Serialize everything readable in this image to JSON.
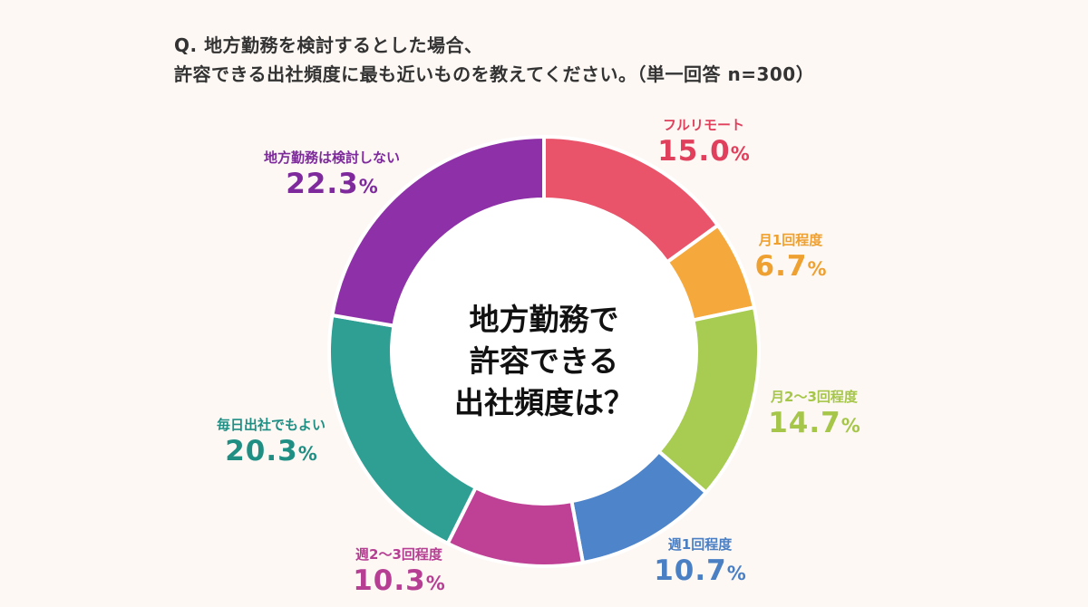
{
  "question": {
    "line1": "Q. 地方勤務を検討するとした場合、",
    "line2": "許容できる出社頻度に最も近いものを教えてください。（単一回答 n=300）"
  },
  "center": {
    "line1": "地方勤務で",
    "line2": "許容できる",
    "line3": "出社頻度は？"
  },
  "chart_data": {
    "type": "pie",
    "donut": true,
    "unit": "%",
    "slices": [
      {
        "label": "フルリモート",
        "value": 15.0,
        "display": "15.0",
        "color": "#e9546b"
      },
      {
        "label": "月1回程度",
        "value": 6.7,
        "display": "6.7",
        "color": "#f5a83c"
      },
      {
        "label": "月2～3回程度",
        "value": 14.7,
        "display": "14.7",
        "color": "#a8cc52"
      },
      {
        "label": "週1回程度",
        "value": 10.7,
        "display": "10.7",
        "color": "#4e84c9"
      },
      {
        "label": "週2～3回程度",
        "value": 10.3,
        "display": "10.3",
        "color": "#bf4196"
      },
      {
        "label": "毎日出社でもよい",
        "value": 20.3,
        "display": "20.3",
        "color": "#2f9f94"
      },
      {
        "label": "地方勤務は検討しない",
        "value": 22.3,
        "display": "22.3",
        "color": "#8e31a8"
      }
    ]
  },
  "label_colors": {
    "フルリモート": "#e0405c",
    "月1回程度": "#eea030",
    "月2～3回程度": "#a6c64a",
    "週1回程度": "#4a7fc4",
    "週2～3回程度": "#b63f93",
    "毎日出社でもよい": "#1f8f84",
    "地方勤務は検討しない": "#7e2a9c"
  }
}
